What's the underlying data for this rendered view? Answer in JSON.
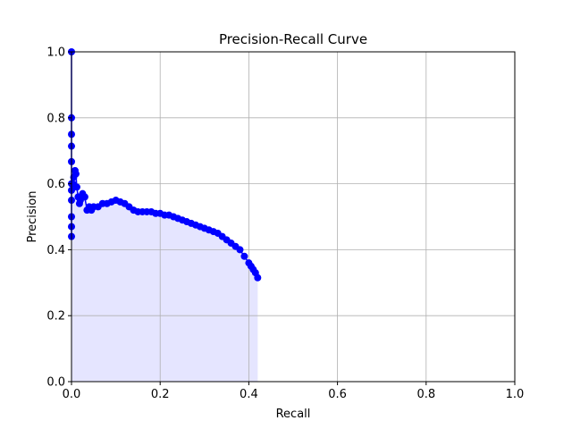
{
  "chart_data": {
    "type": "line",
    "title": "Precision-Recall Curve",
    "xlabel": "Recall",
    "ylabel": "Precision",
    "xlim": [
      0,
      1
    ],
    "ylim": [
      0,
      1
    ],
    "grid": true,
    "x_ticks": [
      "0.0",
      "0.2",
      "0.4",
      "0.6",
      "0.8",
      "1.0"
    ],
    "y_ticks": [
      "0.0",
      "0.2",
      "0.4",
      "0.6",
      "0.8",
      "1.0"
    ],
    "series_color": "#0000ff",
    "fill_color": "#e5e5ff",
    "grid_color": "#b0b0b0",
    "series": [
      {
        "x": [
          0.0,
          0.0,
          0.0,
          0.0,
          0.0,
          0.0,
          0.0,
          0.0,
          0.0,
          0.0,
          0.0,
          0.003,
          0.005,
          0.008,
          0.01,
          0.012,
          0.015,
          0.018,
          0.02,
          0.025,
          0.03,
          0.035,
          0.04,
          0.045,
          0.05,
          0.06,
          0.07,
          0.08,
          0.09,
          0.1,
          0.11,
          0.12,
          0.13,
          0.14,
          0.15,
          0.16,
          0.17,
          0.18,
          0.19,
          0.2,
          0.21,
          0.22,
          0.23,
          0.24,
          0.25,
          0.26,
          0.27,
          0.28,
          0.29,
          0.3,
          0.31,
          0.32,
          0.33,
          0.34,
          0.35,
          0.36,
          0.37,
          0.38,
          0.39,
          0.4,
          0.405,
          0.41,
          0.415,
          0.42
        ],
        "y": [
          1.0,
          0.8,
          0.75,
          0.714,
          0.667,
          0.6,
          0.55,
          0.5,
          0.47,
          0.44,
          0.58,
          0.6,
          0.62,
          0.64,
          0.63,
          0.59,
          0.56,
          0.54,
          0.55,
          0.57,
          0.56,
          0.52,
          0.53,
          0.52,
          0.53,
          0.53,
          0.54,
          0.54,
          0.545,
          0.55,
          0.545,
          0.54,
          0.53,
          0.52,
          0.515,
          0.515,
          0.515,
          0.515,
          0.51,
          0.51,
          0.505,
          0.505,
          0.5,
          0.495,
          0.49,
          0.485,
          0.48,
          0.475,
          0.47,
          0.465,
          0.46,
          0.455,
          0.45,
          0.44,
          0.43,
          0.42,
          0.41,
          0.4,
          0.38,
          0.36,
          0.35,
          0.34,
          0.33,
          0.315
        ]
      }
    ]
  }
}
